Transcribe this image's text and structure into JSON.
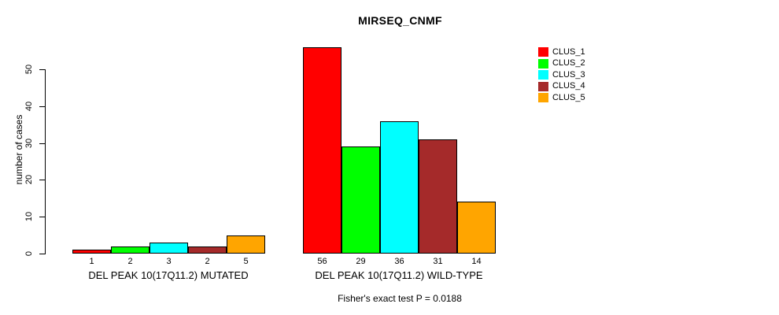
{
  "chart_data": {
    "type": "bar",
    "title": "MIRSEQ_CNMF",
    "xlabel": "",
    "ylabel": "number of cases",
    "ylim": [
      0,
      56
    ],
    "yticks": [
      0,
      10,
      20,
      30,
      40,
      50
    ],
    "grid": false,
    "legend_position": "top-right",
    "legend": [
      {
        "label": "CLUS_1",
        "color": "#FF0000"
      },
      {
        "label": "CLUS_2",
        "color": "#00FF00"
      },
      {
        "label": "CLUS_3",
        "color": "#00FFFF"
      },
      {
        "label": "CLUS_4",
        "color": "#A52A2A"
      },
      {
        "label": "CLUS_5",
        "color": "#FFA500"
      }
    ],
    "groups": [
      {
        "label": "DEL PEAK 10(17Q11.2) MUTATED",
        "values": [
          1,
          2,
          3,
          2,
          5
        ]
      },
      {
        "label": "DEL PEAK 10(17Q11.2) WILD-TYPE",
        "values": [
          56,
          29,
          36,
          31,
          14
        ]
      }
    ],
    "annotation": "Fisher's exact test P = 0.0188"
  }
}
